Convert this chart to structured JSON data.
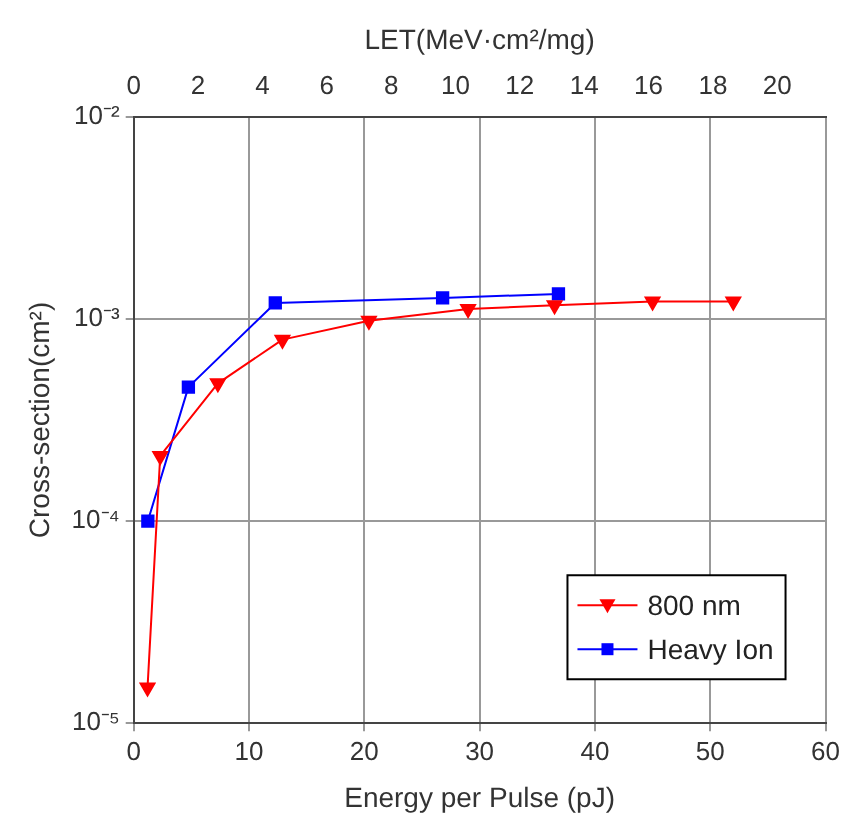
{
  "chart_data": {
    "type": "line",
    "xlabel": "Energy per Pulse (pJ)",
    "x2label": "LET(MeV·cm²/mg)",
    "ylabel": "Cross-section(cm²)",
    "xlim": [
      0,
      60
    ],
    "xticks": [
      0,
      10,
      20,
      30,
      40,
      50,
      60
    ],
    "x2lim": [
      0,
      21.5
    ],
    "x2ticks": [
      0,
      2,
      4,
      6,
      8,
      10,
      12,
      14,
      16,
      18,
      20
    ],
    "ylim": [
      1e-05,
      0.01
    ],
    "yticks": [
      {
        "value": 1e-05,
        "label": "10⁻⁵"
      },
      {
        "value": 0.0001,
        "label": "10⁻⁴"
      },
      {
        "value": 0.001,
        "label": "10⁻³"
      },
      {
        "value": 0.01,
        "label": "10⁻²"
      }
    ],
    "log": "y",
    "grid": true,
    "legend": "bottom right",
    "series": [
      {
        "name": "800 nm",
        "color": "#ff0000",
        "marker": "triangle",
        "x": [
          1.2,
          2.3,
          7.3,
          12.9,
          20.4,
          29,
          36.5,
          45,
          52
        ],
        "values": [
          1.5e-05,
          0.00021,
          0.00048,
          0.00079,
          0.00098,
          0.00112,
          0.00117,
          0.00122,
          0.00122
        ]
      },
      {
        "name": "Heavy Ion",
        "color": "#0000ff",
        "marker": "square",
        "axis": "x2",
        "x": [
          0.44,
          1.7,
          4.4,
          9.6,
          13.2
        ],
        "values": [
          0.0001,
          0.00046,
          0.0012,
          0.00127,
          0.00133
        ]
      }
    ]
  }
}
